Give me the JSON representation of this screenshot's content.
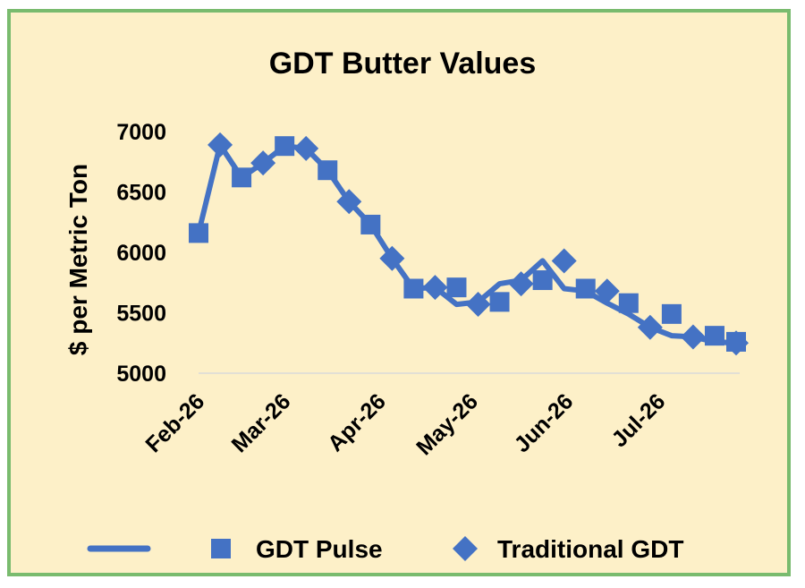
{
  "chart_data": {
    "type": "line",
    "title": "GDT Butter Values",
    "ylabel": "$ per Metric Ton",
    "xlabel": "",
    "ylim": [
      5000,
      7000
    ],
    "yticks": [
      "5000",
      "5500",
      "6000",
      "6500",
      "7000"
    ],
    "xticks": [
      "Feb-26",
      "Mar-26",
      "Apr-26",
      "May-26",
      "Jun-26",
      "Jul-26"
    ],
    "grid": true,
    "legend": "bottom",
    "line_color": "#4472c4",
    "line": {
      "x": [
        "2026-02-01",
        "2026-02-08",
        "2026-02-15",
        "2026-02-22",
        "2026-03-01",
        "2026-03-08",
        "2026-03-15",
        "2026-03-22",
        "2026-03-29",
        "2026-04-05",
        "2026-04-12",
        "2026-04-19",
        "2026-04-26",
        "2026-05-03",
        "2026-05-10",
        "2026-05-17",
        "2026-05-24",
        "2026-05-31",
        "2026-06-07",
        "2026-06-14",
        "2026-06-21",
        "2026-06-28",
        "2026-07-05",
        "2026-07-12",
        "2026-07-19",
        "2026-07-26"
      ],
      "y": [
        6160,
        6890,
        6620,
        6740,
        6880,
        6860,
        6680,
        6420,
        6230,
        5950,
        5700,
        5710,
        5570,
        5590,
        5740,
        5770,
        5930,
        5700,
        5680,
        5580,
        5490,
        5380,
        5310,
        5300,
        5260,
        5250
      ]
    },
    "series": [
      {
        "name": "GDT Pulse",
        "marker": "square",
        "x": [
          "2026-02-01",
          "2026-02-15",
          "2026-03-01",
          "2026-03-15",
          "2026-03-29",
          "2026-04-12",
          "2026-04-26",
          "2026-05-10",
          "2026-05-24",
          "2026-06-07",
          "2026-06-21",
          "2026-07-05",
          "2026-07-19",
          "2026-07-26"
        ],
        "y": [
          6160,
          6620,
          6880,
          6680,
          6230,
          5700,
          5710,
          5590,
          5770,
          5700,
          5580,
          5490,
          5310,
          5260
        ]
      },
      {
        "name": "Traditional GDT",
        "marker": "diamond",
        "x": [
          "2026-02-08",
          "2026-02-22",
          "2026-03-08",
          "2026-03-22",
          "2026-04-05",
          "2026-04-19",
          "2026-05-03",
          "2026-05-17",
          "2026-05-31",
          "2026-06-14",
          "2026-06-28",
          "2026-07-12",
          "2026-07-26"
        ],
        "y": [
          6890,
          6740,
          6860,
          6420,
          5950,
          5710,
          5570,
          5740,
          5930,
          5680,
          5380,
          5300,
          5250
        ]
      }
    ]
  }
}
